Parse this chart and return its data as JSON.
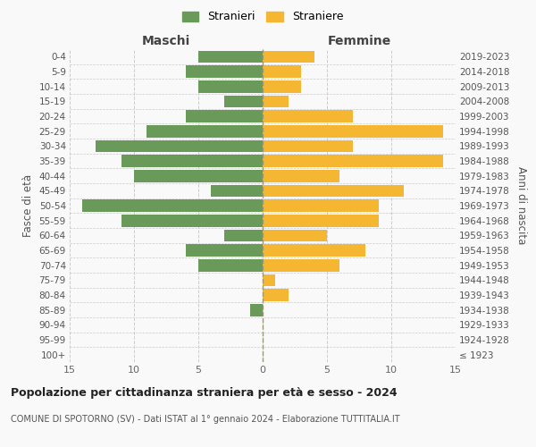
{
  "age_groups": [
    "100+",
    "95-99",
    "90-94",
    "85-89",
    "80-84",
    "75-79",
    "70-74",
    "65-69",
    "60-64",
    "55-59",
    "50-54",
    "45-49",
    "40-44",
    "35-39",
    "30-34",
    "25-29",
    "20-24",
    "15-19",
    "10-14",
    "5-9",
    "0-4"
  ],
  "birth_years": [
    "≤ 1923",
    "1924-1928",
    "1929-1933",
    "1934-1938",
    "1939-1943",
    "1944-1948",
    "1949-1953",
    "1954-1958",
    "1959-1963",
    "1964-1968",
    "1969-1973",
    "1974-1978",
    "1979-1983",
    "1984-1988",
    "1989-1993",
    "1994-1998",
    "1999-2003",
    "2004-2008",
    "2009-2013",
    "2014-2018",
    "2019-2023"
  ],
  "males": [
    0,
    0,
    0,
    1,
    0,
    0,
    5,
    6,
    3,
    11,
    14,
    4,
    10,
    11,
    13,
    9,
    6,
    3,
    5,
    6,
    5
  ],
  "females": [
    0,
    0,
    0,
    0,
    2,
    1,
    6,
    8,
    5,
    9,
    9,
    11,
    6,
    14,
    7,
    14,
    7,
    2,
    3,
    3,
    4
  ],
  "male_color": "#6a9a5a",
  "female_color": "#f5b731",
  "background_color": "#f9f9f9",
  "grid_color": "#cccccc",
  "title": "Popolazione per cittadinanza straniera per età e sesso - 2024",
  "subtitle": "COMUNE DI SPOTORNO (SV) - Dati ISTAT al 1° gennaio 2024 - Elaborazione TUTTITALIA.IT",
  "xlabel_left": "Maschi",
  "xlabel_right": "Femmine",
  "ylabel_left": "Fasce di età",
  "ylabel_right": "Anni di nascita",
  "legend_male": "Stranieri",
  "legend_female": "Straniere",
  "xlim": 15,
  "bar_height": 0.82
}
